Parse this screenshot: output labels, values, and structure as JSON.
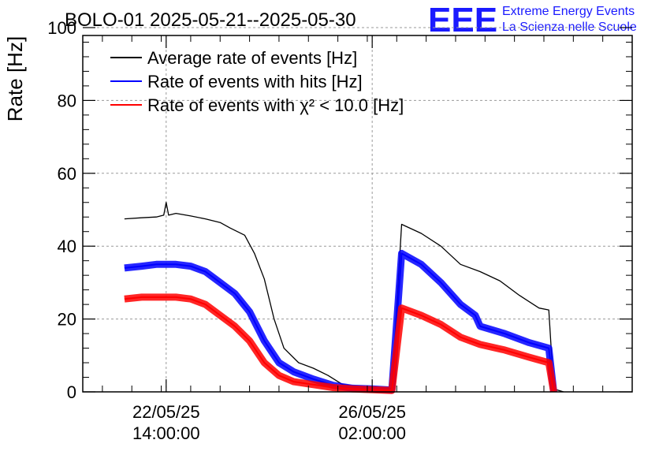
{
  "chart_data": {
    "type": "line",
    "title": "BOLO-01 2025-05-21--2025-05-30",
    "ylabel": "Rate [Hz]",
    "xlabel": "",
    "ylim": [
      0,
      100
    ],
    "y_ticks": [
      0,
      20,
      40,
      60,
      80,
      100
    ],
    "x_range_days": [
      "2025-05-21 04:00",
      "2025-05-30 12:00"
    ],
    "x_ticks": [
      {
        "x": "2025-05-22 14:00",
        "line1": "22/05/25",
        "line2": "14:00:00"
      },
      {
        "x": "2025-05-26 02:00",
        "line1": "26/05/25",
        "line2": "02:00:00"
      }
    ],
    "grid": true,
    "legend_position": "top-left",
    "series": [
      {
        "name": "Average rate of events [Hz]",
        "color": "#000000",
        "points": [
          [
            "2025-05-21 21:00",
            47.5
          ],
          [
            "2025-05-22 04:00",
            47.8
          ],
          [
            "2025-05-22 10:00",
            48.0
          ],
          [
            "2025-05-22 13:00",
            48.5
          ],
          [
            "2025-05-22 14:00",
            52.0
          ],
          [
            "2025-05-22 15:00",
            48.5
          ],
          [
            "2025-05-22 18:00",
            49.0
          ],
          [
            "2025-05-23 00:00",
            48.3
          ],
          [
            "2025-05-23 06:00",
            47.5
          ],
          [
            "2025-05-23 12:00",
            46.5
          ],
          [
            "2025-05-23 16:00",
            45.0
          ],
          [
            "2025-05-23 22:00",
            43.0
          ],
          [
            "2025-05-24 02:00",
            38.0
          ],
          [
            "2025-05-24 06:00",
            31.0
          ],
          [
            "2025-05-24 10:00",
            20.0
          ],
          [
            "2025-05-24 14:00",
            12.0
          ],
          [
            "2025-05-24 20:00",
            8.0
          ],
          [
            "2025-05-25 02:00",
            6.5
          ],
          [
            "2025-05-25 08:00",
            4.5
          ],
          [
            "2025-05-25 14:00",
            2.0
          ],
          [
            "2025-05-25 20:00",
            1.5
          ],
          [
            "2025-05-26 02:00",
            1.2
          ],
          [
            "2025-05-26 06:00",
            1.0
          ],
          [
            "2025-05-26 10:00",
            1.0
          ],
          [
            "2025-05-26 14:00",
            46.0
          ],
          [
            "2025-05-26 22:00",
            43.5
          ],
          [
            "2025-05-27 06:00",
            40.0
          ],
          [
            "2025-05-27 14:00",
            35.0
          ],
          [
            "2025-05-27 22:00",
            33.0
          ],
          [
            "2025-05-28 06:00",
            30.5
          ],
          [
            "2025-05-28 14:00",
            26.5
          ],
          [
            "2025-05-28 22:00",
            23.0
          ],
          [
            "2025-05-29 02:00",
            22.5
          ],
          [
            "2025-05-29 04:00",
            0.8
          ],
          [
            "2025-05-29 08:00",
            0.0
          ]
        ]
      },
      {
        "name": "Rate of events with hits [Hz]",
        "color": "#0000ff",
        "points": [
          [
            "2025-05-21 21:00",
            34.0
          ],
          [
            "2025-05-22 04:00",
            34.5
          ],
          [
            "2025-05-22 10:00",
            35.0
          ],
          [
            "2025-05-22 18:00",
            35.0
          ],
          [
            "2025-05-23 00:00",
            34.5
          ],
          [
            "2025-05-23 06:00",
            33.0
          ],
          [
            "2025-05-23 12:00",
            30.0
          ],
          [
            "2025-05-23 18:00",
            27.0
          ],
          [
            "2025-05-24 00:00",
            22.0
          ],
          [
            "2025-05-24 06:00",
            14.0
          ],
          [
            "2025-05-24 12:00",
            8.0
          ],
          [
            "2025-05-24 18:00",
            5.5
          ],
          [
            "2025-05-25 02:00",
            3.5
          ],
          [
            "2025-05-25 10:00",
            1.8
          ],
          [
            "2025-05-25 18:00",
            1.0
          ],
          [
            "2025-05-26 02:00",
            0.8
          ],
          [
            "2025-05-26 10:00",
            0.5
          ],
          [
            "2025-05-26 14:00",
            38.0
          ],
          [
            "2025-05-26 22:00",
            35.0
          ],
          [
            "2025-05-27 06:00",
            30.0
          ],
          [
            "2025-05-27 14:00",
            24.0
          ],
          [
            "2025-05-27 20:00",
            21.0
          ],
          [
            "2025-05-27 22:00",
            18.0
          ],
          [
            "2025-05-28 08:00",
            16.0
          ],
          [
            "2025-05-28 18:00",
            13.5
          ],
          [
            "2025-05-29 02:00",
            12.0
          ],
          [
            "2025-05-29 04:00",
            0.0
          ]
        ]
      },
      {
        "name": "Rate of events with χ² < 10.0 [Hz]",
        "color": "#ff0000",
        "points": [
          [
            "2025-05-21 21:00",
            25.5
          ],
          [
            "2025-05-22 04:00",
            26.0
          ],
          [
            "2025-05-22 10:00",
            26.0
          ],
          [
            "2025-05-22 18:00",
            26.0
          ],
          [
            "2025-05-23 00:00",
            25.5
          ],
          [
            "2025-05-23 06:00",
            24.0
          ],
          [
            "2025-05-23 12:00",
            21.0
          ],
          [
            "2025-05-23 18:00",
            18.0
          ],
          [
            "2025-05-24 00:00",
            14.0
          ],
          [
            "2025-05-24 06:00",
            8.0
          ],
          [
            "2025-05-24 12:00",
            4.5
          ],
          [
            "2025-05-24 18:00",
            2.8
          ],
          [
            "2025-05-25 02:00",
            2.0
          ],
          [
            "2025-05-25 10:00",
            1.2
          ],
          [
            "2025-05-25 18:00",
            0.8
          ],
          [
            "2025-05-26 02:00",
            0.6
          ],
          [
            "2025-05-26 10:00",
            0.4
          ],
          [
            "2025-05-26 14:00",
            23.0
          ],
          [
            "2025-05-26 22:00",
            21.0
          ],
          [
            "2025-05-27 06:00",
            18.5
          ],
          [
            "2025-05-27 14:00",
            15.0
          ],
          [
            "2025-05-27 22:00",
            13.0
          ],
          [
            "2025-05-28 08:00",
            11.5
          ],
          [
            "2025-05-28 18:00",
            9.5
          ],
          [
            "2025-05-29 02:00",
            8.0
          ],
          [
            "2025-05-29 04:00",
            0.0
          ]
        ]
      }
    ]
  },
  "logo": {
    "mark": "EEE",
    "line1": "Extreme Energy Events",
    "line2": "La Scienza nelle Scuole",
    "color": "#1a1aff"
  }
}
